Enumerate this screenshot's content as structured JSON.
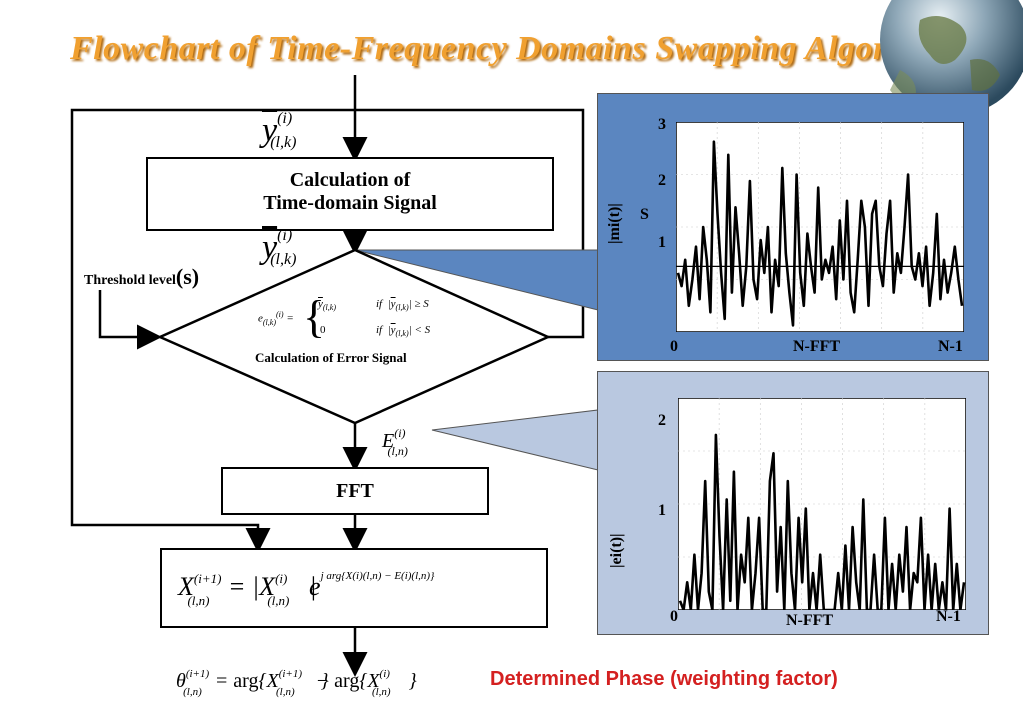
{
  "title": "Flowchart of Time-Frequency Domains Swapping Algorithm",
  "flow": {
    "time_box": [
      "Calculation of",
      "Time-domain Signal"
    ],
    "threshold_label": "Threshold level",
    "threshold_symbol": "(s)",
    "error_box_label": "Calculation of  Error Signal",
    "fft_box": "FFT",
    "determined_phase": "Determined Phase (weighting factor)"
  },
  "math": {
    "y_bar": "y",
    "y_sup": "(i)",
    "y_sub": "(l,k)",
    "e_main": "e",
    "e_sub": "(l,k)",
    "e_sup": "(i)",
    "case1_if": "if",
    "case1_cond": "≥ S",
    "case2_val": "0",
    "case2_if": "if",
    "case2_cond": "< S",
    "E_main": "E",
    "E_sup": "(i)",
    "E_sub": "(l,n)",
    "X_main": "X",
    "X_sup_next": "(i+1)",
    "X_sup": "(i)",
    "X_sub": "(l,n)",
    "exp_text": "j arg{X(i)(l,n) − E(i)(l,n)}",
    "theta": "θ",
    "arg": "arg",
    "e_base": "e",
    "eq": "="
  },
  "chart_data": [
    {
      "type": "line",
      "ylabel": "|mi(t)|",
      "ylabel_s": "S",
      "xlabel_mid": "N-FFT",
      "xlabel_left": "0",
      "xlabel_right": "N-1",
      "yticks": [
        "3",
        "2",
        "1"
      ],
      "ylim": [
        0,
        3.2
      ],
      "threshold": 1.0,
      "background": "#5b86c0",
      "values": [
        0.9,
        0.7,
        1.1,
        0.4,
        0.8,
        1.3,
        0.5,
        1.6,
        1.1,
        0.3,
        2.9,
        1.8,
        0.9,
        0.2,
        2.7,
        0.6,
        1.9,
        1.2,
        0.4,
        1.0,
        2.3,
        0.8,
        0.5,
        1.4,
        0.9,
        1.6,
        0.3,
        1.1,
        0.7,
        2.5,
        1.2,
        0.6,
        0.1,
        2.4,
        0.9,
        0.4,
        1.5,
        1.0,
        0.6,
        2.2,
        0.8,
        1.1,
        0.9,
        1.3,
        0.5,
        1.7,
        0.8,
        2.0,
        0.6,
        0.3,
        1.1,
        2.0,
        1.6,
        0.4,
        1.8,
        2.0,
        1.0,
        0.7,
        1.5,
        2.0,
        0.6,
        1.2,
        0.9,
        1.6,
        2.4,
        1.0,
        0.8,
        1.2,
        0.7,
        1.3,
        0.4,
        0.9,
        1.8,
        0.5,
        1.1,
        0.6,
        0.9,
        1.3,
        0.8,
        0.4
      ]
    },
    {
      "type": "line",
      "ylabel": "|ei(t)|",
      "xlabel_mid": "N-FFT",
      "xlabel_left": "0",
      "xlabel_right": "N-1",
      "yticks": [
        "2",
        "1"
      ],
      "ylim": [
        0,
        2.3
      ],
      "background": "#b9c8e0",
      "values": [
        0.1,
        0.0,
        0.3,
        0.0,
        0.6,
        0.0,
        0.4,
        1.4,
        0.2,
        0.0,
        1.9,
        0.8,
        0.0,
        1.2,
        0.1,
        1.5,
        0.0,
        0.6,
        0.3,
        1.0,
        0.0,
        0.4,
        1.0,
        0.0,
        0.0,
        1.4,
        1.7,
        0.2,
        0.9,
        0.0,
        1.4,
        0.4,
        0.0,
        1.0,
        0.3,
        1.1,
        0.0,
        0.4,
        0.0,
        0.6,
        0.0,
        0.0,
        0.0,
        0.0,
        0.4,
        0.0,
        0.7,
        0.0,
        0.9,
        0.3,
        0.0,
        1.2,
        0.0,
        0.0,
        0.6,
        0.0,
        0.0,
        1.0,
        0.0,
        0.5,
        0.0,
        0.6,
        0.2,
        0.9,
        0.0,
        0.4,
        0.3,
        1.0,
        0.0,
        0.6,
        0.0,
        0.5,
        0.0,
        0.3,
        0.0,
        1.1,
        0.0,
        0.5,
        0.0,
        0.3
      ]
    }
  ]
}
